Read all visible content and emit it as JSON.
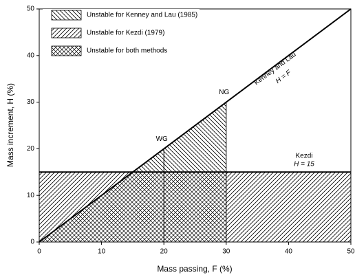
{
  "chart_data": {
    "type": "line",
    "xlabel": "Mass passing, F (%)",
    "ylabel": "Mass increment, H (%)",
    "xlim": [
      0,
      50
    ],
    "ylim": [
      0,
      50
    ],
    "xticks": [
      0,
      10,
      20,
      30,
      40,
      50
    ],
    "yticks": [
      0,
      10,
      20,
      30,
      40,
      50
    ],
    "color": "#000000",
    "series": [
      {
        "x": [
          0,
          50
        ],
        "values": [
          0,
          50
        ]
      },
      {
        "x": [
          0,
          50
        ],
        "values": [
          15,
          15
        ]
      },
      {
        "x": [
          20,
          20
        ],
        "values": [
          0,
          20
        ]
      },
      {
        "x": [
          30,
          30
        ],
        "values": [
          0,
          30
        ]
      }
    ],
    "regions": [
      {
        "name": "Unstable for Kenney and Lau (1985)",
        "pattern": "back",
        "polygons": [
          {
            "x": [
              15,
              30,
              30
            ],
            "y": [
              15,
              30,
              15
            ]
          }
        ]
      },
      {
        "name": "Unstable for Kezdi (1979)",
        "pattern": "forward",
        "polygons": [
          {
            "x": [
              0,
              0,
              15
            ],
            "y": [
              0,
              15,
              15
            ]
          },
          {
            "x": [
              30,
              30,
              50,
              50
            ],
            "y": [
              0,
              15,
              15,
              0
            ]
          }
        ]
      },
      {
        "name": "Unstable for both methods",
        "pattern": "cross",
        "polygons": [
          {
            "x": [
              0,
              15,
              30,
              30
            ],
            "y": [
              0,
              15,
              15,
              0
            ]
          }
        ]
      }
    ],
    "annotations": [
      {
        "text": "Kenney and Lau"
      },
      {
        "text": "H = F"
      },
      {
        "text": "Kezdi"
      },
      {
        "text": "H = 15"
      },
      {
        "text": "WG",
        "x": 20,
        "y": 20
      },
      {
        "text": "NG",
        "x": 30,
        "y": 30
      }
    ]
  }
}
